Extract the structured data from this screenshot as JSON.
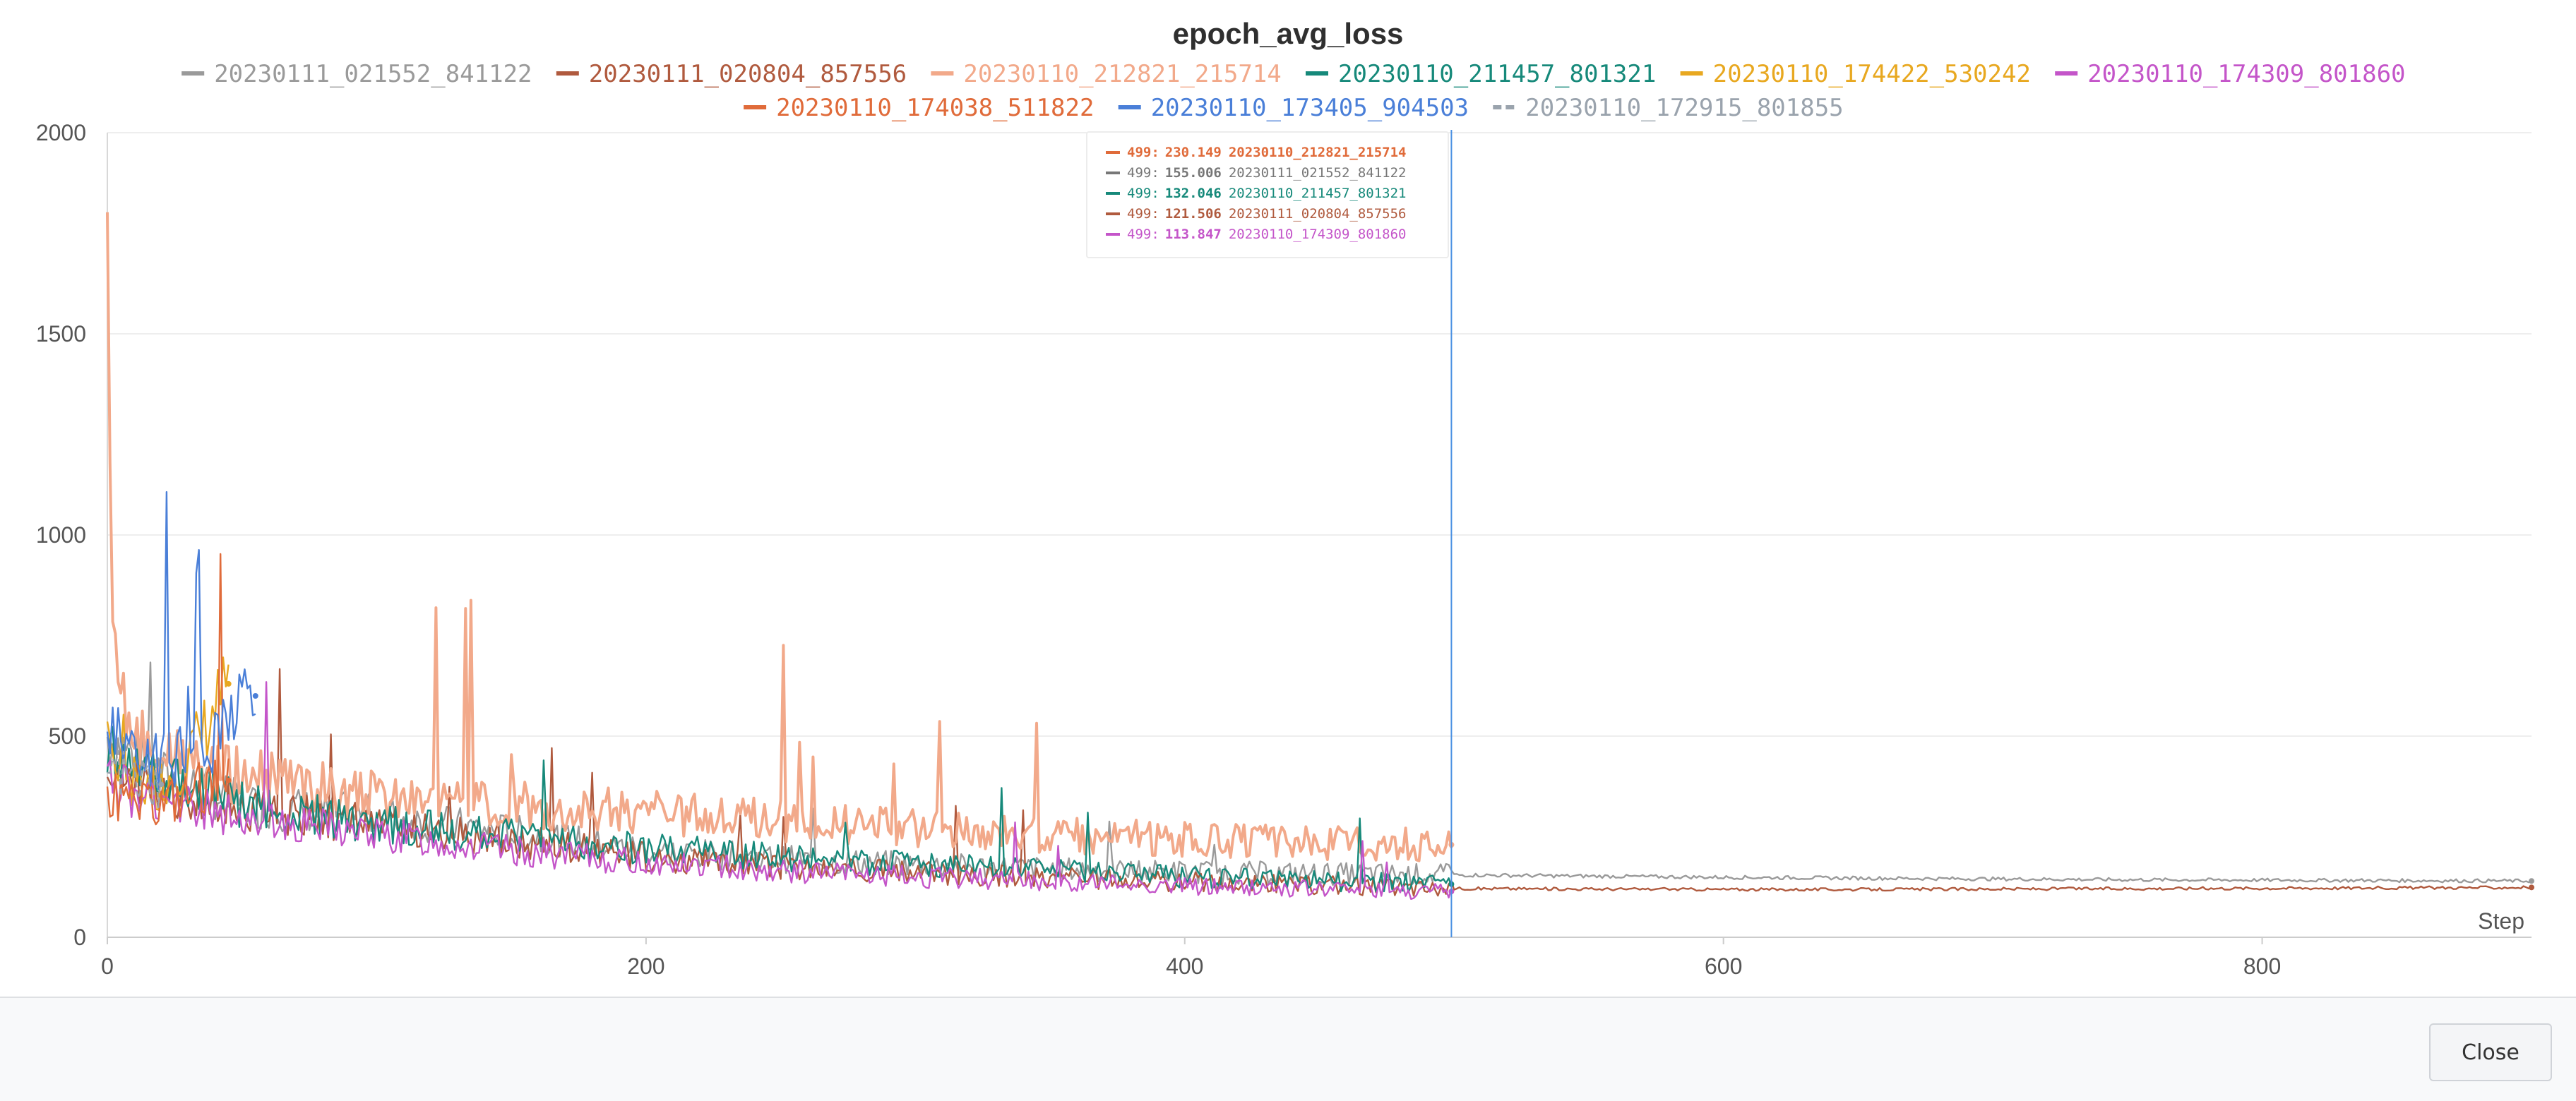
{
  "chart_data": {
    "type": "line",
    "title": "epoch_avg_loss",
    "xlabel": "Step",
    "ylabel": "",
    "xlim": [
      0,
      900
    ],
    "ylim": [
      0,
      2000
    ],
    "x_ticks": [
      "0",
      "200",
      "400",
      "600",
      "800"
    ],
    "y_ticks": [
      "0",
      "500",
      "1000",
      "1500",
      "2000"
    ],
    "grid": true,
    "legend_position": "top",
    "cursor_step": 499,
    "series": [
      {
        "name": "20230111_021552_841122",
        "color": "#9a9a9a",
        "dashed": false,
        "x": [
          0,
          20,
          50,
          100,
          150,
          200,
          250,
          300,
          350,
          400,
          450,
          499,
          550,
          600,
          650,
          700,
          750,
          800,
          850,
          900
        ],
        "y": [
          500,
          400,
          330,
          300,
          260,
          215,
          195,
          180,
          170,
          163,
          158,
          155,
          152,
          149,
          147,
          145,
          143,
          142,
          141,
          140
        ]
      },
      {
        "name": "20230111_020804_857556",
        "color": "#b05a3e",
        "dashed": false,
        "x": [
          0,
          20,
          50,
          100,
          150,
          200,
          250,
          300,
          350,
          400,
          450,
          499,
          550,
          600,
          650,
          700,
          750,
          800,
          850,
          900
        ],
        "y": [
          420,
          360,
          320,
          280,
          240,
          200,
          175,
          160,
          148,
          138,
          130,
          121.5,
          120,
          119,
          119,
          120,
          121,
          122,
          123,
          124
        ]
      },
      {
        "name": "20230110_212821_215714",
        "color": "#f2a98a",
        "dashed": false,
        "x": [
          0,
          1,
          3,
          6,
          10,
          20,
          40,
          60,
          80,
          100,
          150,
          200,
          250,
          300,
          350,
          400,
          450,
          499
        ],
        "y": [
          2000,
          1200,
          700,
          560,
          500,
          450,
          410,
          390,
          370,
          350,
          330,
          310,
          290,
          270,
          255,
          245,
          235,
          230
        ]
      },
      {
        "name": "20230110_211457_801321",
        "color": "#16897a",
        "dashed": false,
        "x": [
          0,
          20,
          50,
          100,
          150,
          200,
          250,
          300,
          350,
          400,
          450,
          499
        ],
        "y": [
          480,
          400,
          330,
          280,
          250,
          220,
          200,
          180,
          165,
          150,
          140,
          132
        ]
      },
      {
        "name": "20230110_174422_530242",
        "color": "#e8a820",
        "dashed": false,
        "x": [
          0,
          5,
          10,
          15,
          20,
          25,
          30,
          35,
          40,
          45
        ],
        "y": [
          460,
          420,
          390,
          370,
          380,
          410,
          450,
          500,
          560,
          630
        ]
      },
      {
        "name": "20230110_174309_801860",
        "color": "#c455c9",
        "dashed": false,
        "x": [
          0,
          20,
          50,
          100,
          150,
          200,
          250,
          300,
          350,
          400,
          450,
          499
        ],
        "y": [
          380,
          340,
          300,
          255,
          215,
          185,
          165,
          150,
          138,
          128,
          120,
          113.8
        ]
      },
      {
        "name": "20230110_174038_511822",
        "color": "#e06b3a",
        "dashed": false,
        "x": [
          0,
          10,
          20,
          30,
          40,
          45
        ],
        "y": [
          350,
          330,
          340,
          360,
          380,
          390
        ]
      },
      {
        "name": "20230110_173405_904503",
        "color": "#4a7fd8",
        "dashed": false,
        "x": [
          0,
          10,
          20,
          30,
          40,
          50,
          55
        ],
        "y": [
          500,
          460,
          430,
          450,
          500,
          560,
          600
        ]
      },
      {
        "name": "20230110_172915_801855",
        "color": "#9aa3ad",
        "dashed": true,
        "x": [
          0,
          5,
          10,
          15,
          20
        ],
        "y": [
          420,
          400,
          390,
          385,
          380
        ]
      }
    ],
    "tooltip": [
      {
        "step": "499:",
        "value": "230.149",
        "run": "20230110_212821_215714",
        "color": "#e06b3a"
      },
      {
        "step": "499:",
        "value": "155.006",
        "run": "20230111_021552_841122",
        "color": "#777777"
      },
      {
        "step": "499:",
        "value": "132.046",
        "run": "20230110_211457_801321",
        "color": "#16897a"
      },
      {
        "step": "499:",
        "value": "121.506",
        "run": "20230111_020804_857556",
        "color": "#b05a3e"
      },
      {
        "step": "499:",
        "value": "113.847",
        "run": "20230110_174309_801860",
        "color": "#c455c9"
      }
    ]
  },
  "footer": {
    "close_label": "Close"
  }
}
